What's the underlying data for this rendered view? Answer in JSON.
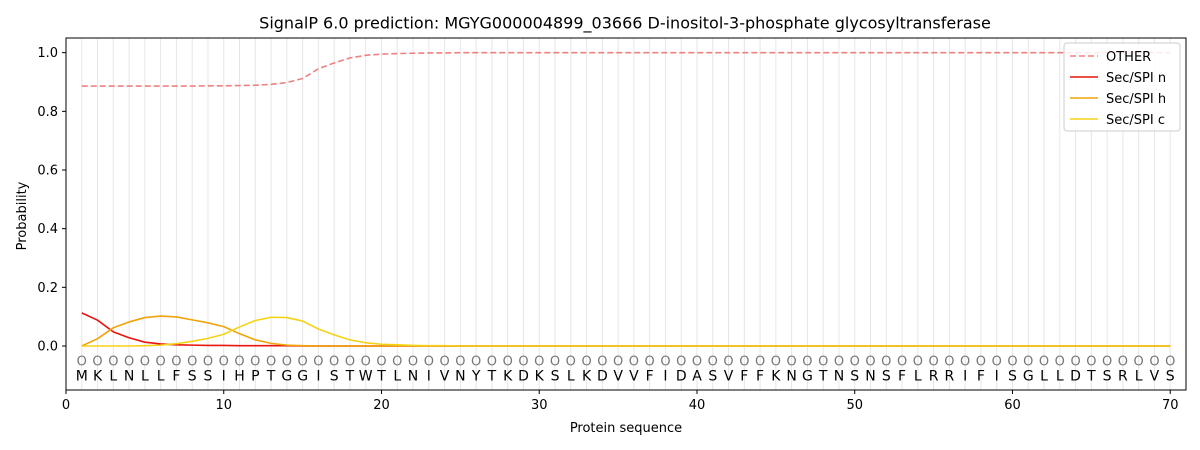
{
  "chart_data": {
    "type": "line",
    "title": "SignalP 6.0 prediction: MGYG000004899_03666 D-inositol-3-phosphate glycosyltransferase",
    "xlabel": "Protein sequence",
    "ylabel": "Probability",
    "xlim": [
      0,
      71
    ],
    "ylim": [
      -0.15,
      1.05
    ],
    "xticks": [
      0,
      10,
      20,
      30,
      40,
      50,
      60,
      70
    ],
    "yticks": [
      0.0,
      0.2,
      0.4,
      0.6,
      0.8,
      1.0
    ],
    "ytick_labels": [
      "0.0",
      "0.2",
      "0.4",
      "0.6",
      "0.8",
      "1.0"
    ],
    "grid": "vertical lines at each residue",
    "legend_position": "top-right",
    "sequence": [
      "M",
      "K",
      "L",
      "N",
      "L",
      "L",
      "F",
      "S",
      "S",
      "I",
      "H",
      "P",
      "T",
      "G",
      "G",
      "I",
      "S",
      "T",
      "W",
      "T",
      "L",
      "N",
      "I",
      "V",
      "N",
      "Y",
      "T",
      "K",
      "D",
      "K",
      "S",
      "L",
      "K",
      "D",
      "V",
      "V",
      "F",
      "I",
      "D",
      "A",
      "S",
      "V",
      "F",
      "F",
      "K",
      "N",
      "G",
      "T",
      "N",
      "S",
      "N",
      "S",
      "F",
      "L",
      "R",
      "R",
      "I",
      "F",
      "I",
      "S",
      "G",
      "L",
      "L",
      "D",
      "T",
      "S",
      "R",
      "L",
      "V",
      "S"
    ],
    "region_labels": [
      "O",
      "O",
      "O",
      "O",
      "O",
      "O",
      "O",
      "O",
      "O",
      "O",
      "O",
      "O",
      "O",
      "O",
      "O",
      "O",
      "O",
      "O",
      "O",
      "O",
      "O",
      "O",
      "O",
      "O",
      "O",
      "O",
      "O",
      "O",
      "O",
      "O",
      "O",
      "O",
      "O",
      "O",
      "O",
      "O",
      "O",
      "O",
      "O",
      "O",
      "O",
      "O",
      "O",
      "O",
      "O",
      "O",
      "O",
      "O",
      "O",
      "O",
      "O",
      "O",
      "O",
      "O",
      "O",
      "O",
      "O",
      "O",
      "O",
      "O",
      "O",
      "O",
      "O",
      "O",
      "O",
      "O",
      "O",
      "O",
      "O",
      "O"
    ],
    "series": [
      {
        "name": "OTHER",
        "color": "#f08080",
        "dashed": true,
        "values": [
          0.886,
          0.886,
          0.886,
          0.886,
          0.886,
          0.886,
          0.886,
          0.886,
          0.887,
          0.887,
          0.888,
          0.889,
          0.892,
          0.898,
          0.912,
          0.945,
          0.965,
          0.982,
          0.991,
          0.995,
          0.997,
          0.998,
          0.999,
          0.999,
          1.0,
          1.0,
          1.0,
          1.0,
          1.0,
          1.0,
          1.0,
          1.0,
          1.0,
          1.0,
          1.0,
          1.0,
          1.0,
          1.0,
          1.0,
          1.0,
          1.0,
          1.0,
          1.0,
          1.0,
          1.0,
          1.0,
          1.0,
          1.0,
          1.0,
          1.0,
          1.0,
          1.0,
          1.0,
          1.0,
          1.0,
          1.0,
          1.0,
          1.0,
          1.0,
          1.0,
          1.0,
          1.0,
          1.0,
          1.0,
          1.0,
          1.0,
          1.0,
          1.0,
          1.0,
          1.0
        ]
      },
      {
        "name": "Sec/SPI n",
        "color": "#e8160c",
        "dashed": false,
        "values": [
          0.113,
          0.088,
          0.048,
          0.028,
          0.013,
          0.007,
          0.004,
          0.003,
          0.002,
          0.002,
          0.001,
          0.001,
          0.001,
          0.001,
          0.0,
          0.0,
          0.0,
          0.0,
          0.0,
          0.0,
          0.0,
          0.0,
          0.0,
          0.0,
          0.0,
          0.0,
          0.0,
          0.0,
          0.0,
          0.0,
          0.0,
          0.0,
          0.0,
          0.0,
          0.0,
          0.0,
          0.0,
          0.0,
          0.0,
          0.0,
          0.0,
          0.0,
          0.0,
          0.0,
          0.0,
          0.0,
          0.0,
          0.0,
          0.0,
          0.0,
          0.0,
          0.0,
          0.0,
          0.0,
          0.0,
          0.0,
          0.0,
          0.0,
          0.0,
          0.0,
          0.0,
          0.0,
          0.0,
          0.0,
          0.0,
          0.0,
          0.0,
          0.0,
          0.0,
          0.0
        ]
      },
      {
        "name": "Sec/SPI h",
        "color": "#f0a30a",
        "dashed": false,
        "values": [
          0.0,
          0.025,
          0.062,
          0.082,
          0.097,
          0.102,
          0.099,
          0.089,
          0.079,
          0.066,
          0.042,
          0.021,
          0.009,
          0.003,
          0.001,
          0.0,
          0.0,
          0.0,
          0.0,
          0.0,
          0.0,
          0.0,
          0.0,
          0.0,
          0.0,
          0.0,
          0.0,
          0.0,
          0.0,
          0.0,
          0.0,
          0.0,
          0.0,
          0.0,
          0.0,
          0.0,
          0.0,
          0.0,
          0.0,
          0.0,
          0.0,
          0.0,
          0.0,
          0.0,
          0.0,
          0.0,
          0.0,
          0.0,
          0.0,
          0.0,
          0.0,
          0.0,
          0.0,
          0.0,
          0.0,
          0.0,
          0.0,
          0.0,
          0.0,
          0.0,
          0.0,
          0.0,
          0.0,
          0.0,
          0.0,
          0.0,
          0.0,
          0.0,
          0.0,
          0.0
        ]
      },
      {
        "name": "Sec/SPI c",
        "color": "#f5d216",
        "dashed": false,
        "values": [
          0.0,
          0.0,
          0.0,
          0.0,
          0.001,
          0.003,
          0.008,
          0.016,
          0.026,
          0.04,
          0.065,
          0.087,
          0.098,
          0.097,
          0.085,
          0.058,
          0.038,
          0.021,
          0.011,
          0.006,
          0.004,
          0.002,
          0.001,
          0.001,
          0.0,
          0.0,
          0.0,
          0.0,
          0.0,
          0.0,
          0.0,
          0.0,
          0.0,
          0.0,
          0.0,
          0.0,
          0.0,
          0.0,
          0.0,
          0.0,
          0.0,
          0.0,
          0.0,
          0.0,
          0.0,
          0.0,
          0.0,
          0.0,
          0.0,
          0.0,
          0.0,
          0.0,
          0.0,
          0.0,
          0.0,
          0.0,
          0.0,
          0.0,
          0.0,
          0.0,
          0.0,
          0.0,
          0.0,
          0.0,
          0.0,
          0.0,
          0.0,
          0.0,
          0.0,
          0.0
        ]
      }
    ]
  }
}
